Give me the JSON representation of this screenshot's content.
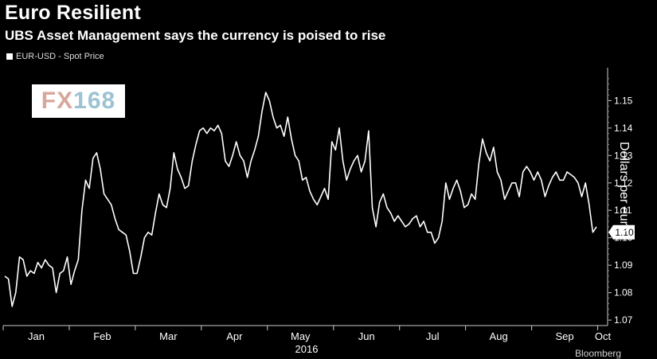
{
  "chart_data": {
    "type": "line",
    "title": "Euro Resilient",
    "subtitle": "UBS Asset Management says the currency is poised to rise",
    "legend": [
      "EUR-USD - Spot Price"
    ],
    "ylabel": "Dollars per euro",
    "xlabel": "2016",
    "x_ticks": [
      "Jan",
      "Feb",
      "Mar",
      "Apr",
      "May",
      "Jun",
      "Jul",
      "Aug",
      "Sep",
      "Oct"
    ],
    "y_ticks": [
      "1.15",
      "1.14",
      "1.13",
      "1.12",
      "1.11",
      "1.10",
      "1.09",
      "1.08",
      "1.07"
    ],
    "ylim": [
      1.068,
      1.162
    ],
    "last_value_label": "1.10",
    "footer": "Bloomberg",
    "colors": {
      "background": "#000000",
      "line": "#ffffff"
    },
    "series": [
      {
        "values": [
          1.086,
          1.085,
          1.075,
          1.08,
          1.093,
          1.092,
          1.086,
          1.088,
          1.087,
          1.091,
          1.089,
          1.092,
          1.09,
          1.089,
          1.08,
          1.087,
          1.088,
          1.093,
          1.083,
          1.088,
          1.092,
          1.11,
          1.121,
          1.118,
          1.129,
          1.131,
          1.125,
          1.116,
          1.114,
          1.112,
          1.107,
          1.103,
          1.102,
          1.101,
          1.095,
          1.087,
          1.087,
          1.093,
          1.1,
          1.102,
          1.101,
          1.109,
          1.116,
          1.112,
          1.111,
          1.118,
          1.131,
          1.125,
          1.122,
          1.118,
          1.119,
          1.128,
          1.134,
          1.139,
          1.14,
          1.138,
          1.14,
          1.139,
          1.141,
          1.138,
          1.128,
          1.126,
          1.13,
          1.135,
          1.13,
          1.128,
          1.122,
          1.128,
          1.132,
          1.137,
          1.146,
          1.153,
          1.15,
          1.144,
          1.14,
          1.141,
          1.137,
          1.144,
          1.136,
          1.13,
          1.128,
          1.121,
          1.122,
          1.117,
          1.114,
          1.112,
          1.115,
          1.118,
          1.114,
          1.135,
          1.132,
          1.14,
          1.128,
          1.121,
          1.125,
          1.128,
          1.13,
          1.124,
          1.128,
          1.139,
          1.111,
          1.104,
          1.113,
          1.116,
          1.111,
          1.109,
          1.106,
          1.108,
          1.106,
          1.104,
          1.105,
          1.107,
          1.108,
          1.104,
          1.106,
          1.102,
          1.102,
          1.098,
          1.1,
          1.106,
          1.12,
          1.114,
          1.118,
          1.121,
          1.117,
          1.111,
          1.112,
          1.116,
          1.114,
          1.127,
          1.136,
          1.131,
          1.128,
          1.133,
          1.124,
          1.121,
          1.114,
          1.117,
          1.12,
          1.12,
          1.115,
          1.124,
          1.126,
          1.124,
          1.121,
          1.124,
          1.121,
          1.115,
          1.119,
          1.122,
          1.124,
          1.121,
          1.121,
          1.124,
          1.123,
          1.122,
          1.12,
          1.115,
          1.12,
          1.112,
          1.102,
          1.104
        ]
      }
    ]
  }
}
